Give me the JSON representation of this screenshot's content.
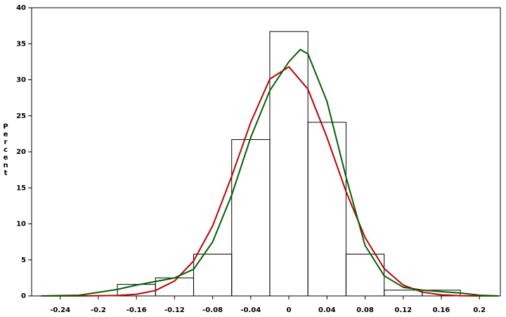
{
  "chart_data": {
    "type": "histogram",
    "y_label": "Percent",
    "bins": [
      -0.18,
      -0.14,
      -0.1,
      -0.06,
      -0.02,
      0.02,
      0.06,
      0.1,
      0.14,
      0.18
    ],
    "values": [
      1.6,
      2.5,
      5.8,
      21.7,
      36.7,
      24.1,
      5.8,
      0.8,
      0.8
    ],
    "color": "#000000",
    "series": [
      {
        "color": "#c00000",
        "x": [
          -0.26,
          -0.22,
          -0.18,
          -0.16,
          -0.14,
          -0.12,
          -0.1,
          -0.08,
          -0.06,
          -0.04,
          -0.02,
          0,
          0.02,
          0.04,
          0.06,
          0.08,
          0.1,
          0.12,
          0.14,
          0.16,
          0.18,
          0.2,
          0.22
        ],
        "values": [
          0,
          0,
          0.06,
          0.23,
          0.75,
          2.07,
          4.85,
          9.72,
          16.6,
          24.1,
          30.1,
          31.8,
          28.7,
          22.0,
          14.5,
          8.1,
          3.8,
          1.5,
          0.53,
          0.15,
          0.03,
          0,
          0
        ]
      },
      {
        "color": "#006000",
        "x": [
          -0.26,
          -0.22,
          -0.18,
          -0.16,
          -0.14,
          -0.12,
          -0.1,
          -0.08,
          -0.06,
          -0.04,
          -0.02,
          0,
          0.012,
          0.02,
          0.04,
          0.06,
          0.08,
          0.1,
          0.12,
          0.14,
          0.16,
          0.18,
          0.2,
          0.22
        ],
        "values": [
          0,
          0.1,
          0.9,
          1.5,
          2.0,
          2.5,
          3.7,
          7.5,
          14,
          22,
          28.5,
          32.5,
          34.2,
          33.6,
          27,
          16.5,
          7,
          2.8,
          1.2,
          0.8,
          0.6,
          0.4,
          0.1,
          0
        ]
      }
    ],
    "xlim": [
      -0.27,
      0.222
    ],
    "ylim": [
      0,
      40
    ],
    "xticks": [
      -0.24,
      -0.2,
      -0.16,
      -0.12,
      -0.08,
      -0.04,
      0,
      0.04,
      0.08,
      0.12,
      0.16,
      0.2
    ],
    "yticks": [
      0,
      5,
      10,
      15,
      20,
      25,
      30,
      35,
      40
    ]
  }
}
